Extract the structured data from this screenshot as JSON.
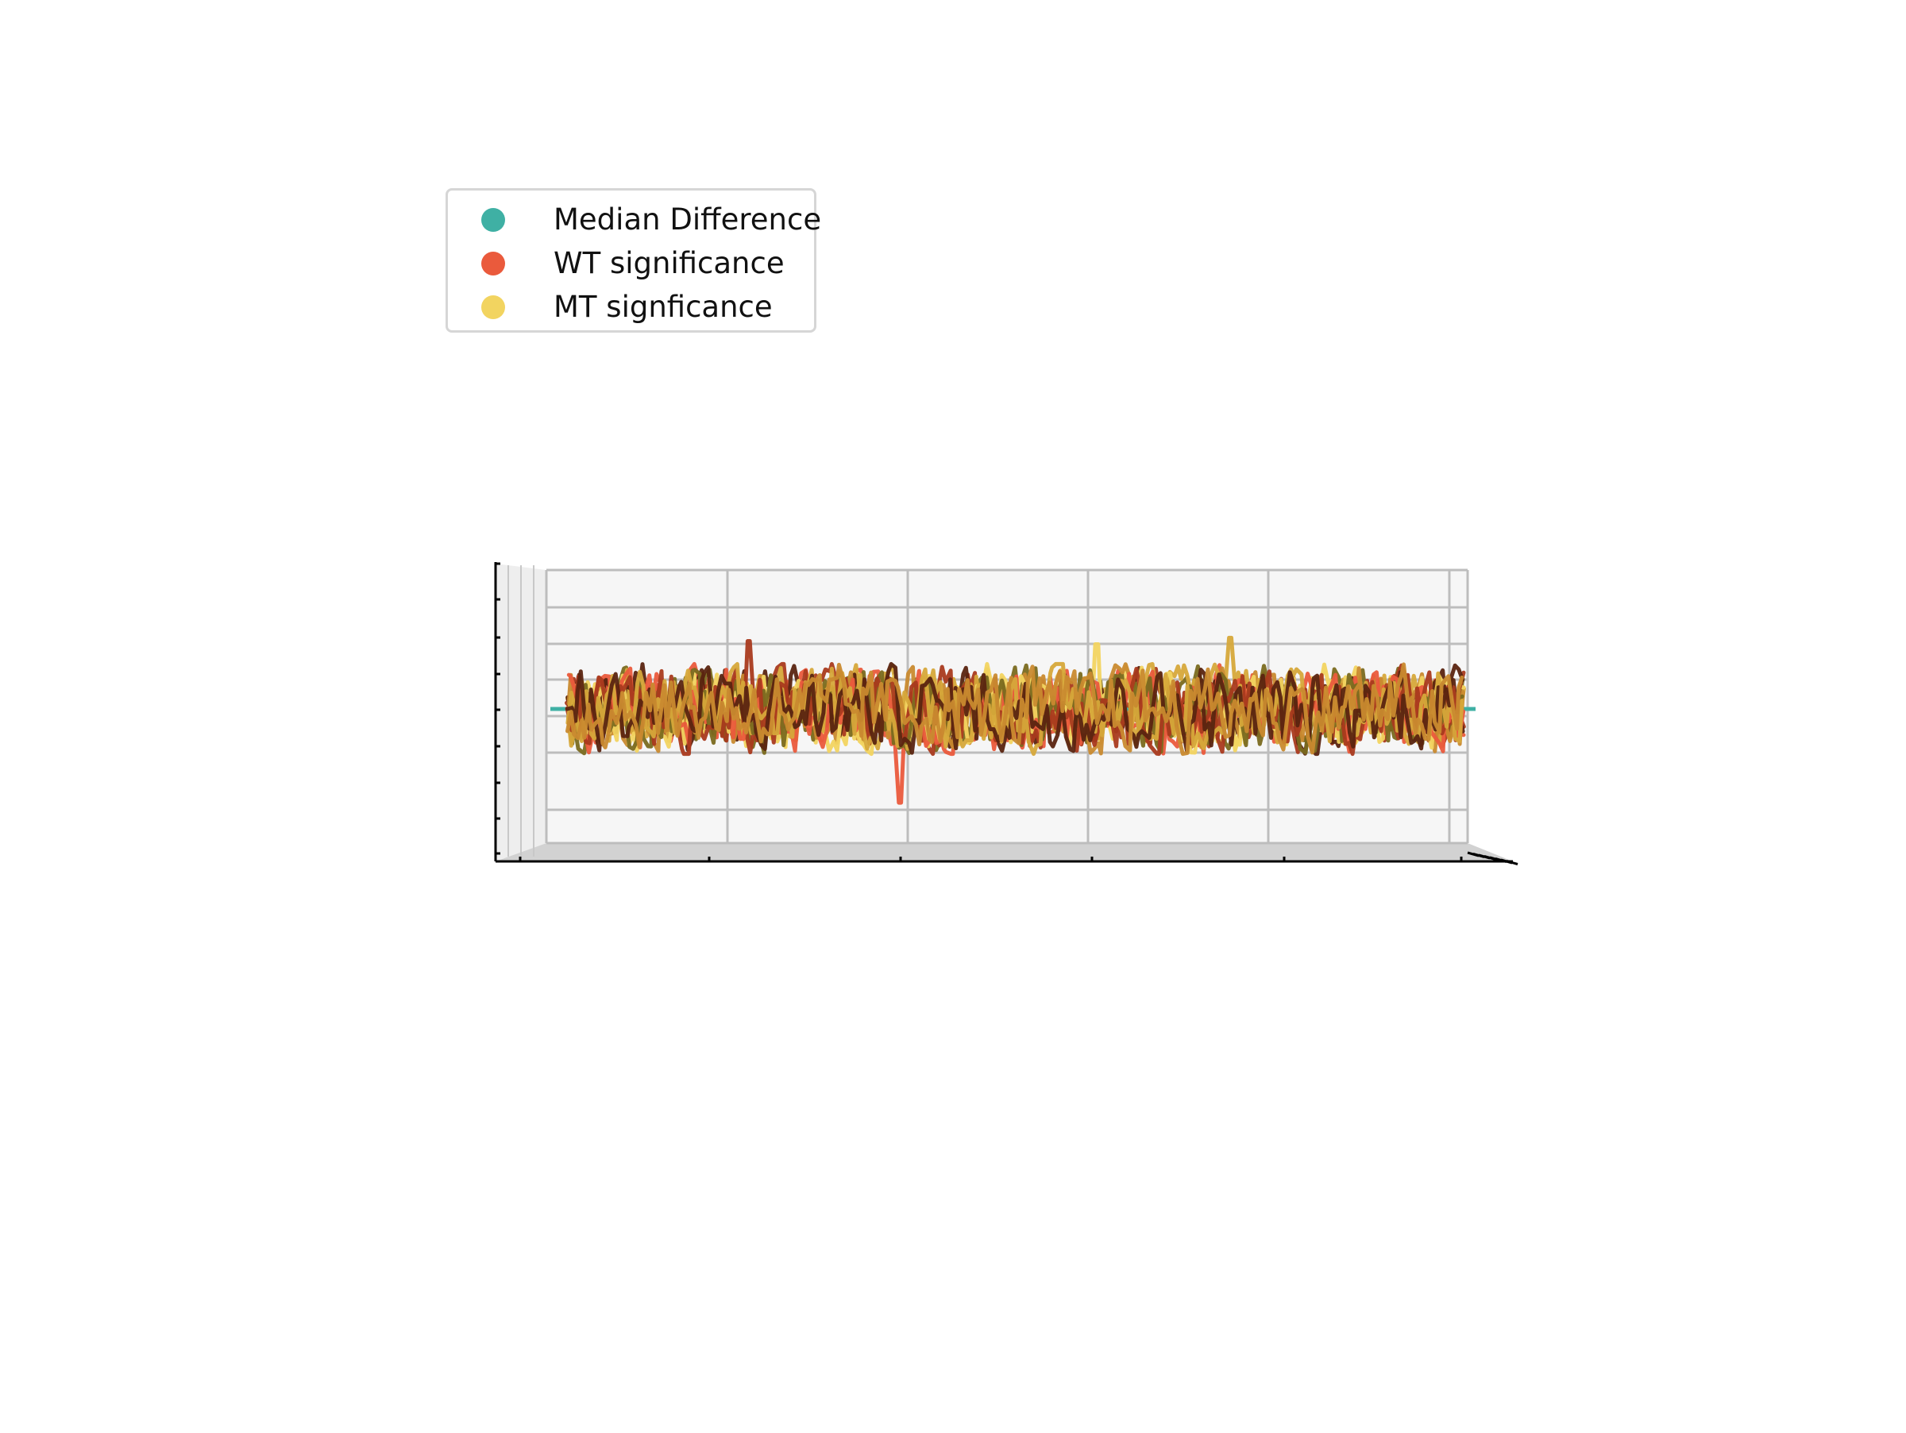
{
  "chart_data": {
    "type": "line",
    "projection": "3d",
    "title": "",
    "xlabel": "",
    "ylabel": "",
    "zlabel": "",
    "tick_labels_shown": false,
    "grid": true,
    "legend_placement": "upper-left",
    "legend": [
      {
        "label": "Median Difference",
        "color": "#3fb0a4"
      },
      {
        "label": "WT significance",
        "color": "#ea5a3c"
      },
      {
        "label": "MT signficance",
        "color": "#f2d460"
      }
    ],
    "series_colors": [
      "#f2d460",
      "#ea5a3c",
      "#7a6a1f",
      "#a93a1e",
      "#d6a83a",
      "#5a2410",
      "#c98a2f"
    ],
    "median_difference_level": 0.0,
    "noise_amplitude": 1.0,
    "spikes": [
      {
        "x": 0.37,
        "z": -2.9
      },
      {
        "x": 0.74,
        "z": 2.2
      },
      {
        "x": 0.59,
        "z": 2.0
      },
      {
        "x": 0.2,
        "z": 2.1
      }
    ],
    "ylim": [
      -3.8,
      3.8
    ],
    "xlim": [
      0,
      1
    ]
  }
}
